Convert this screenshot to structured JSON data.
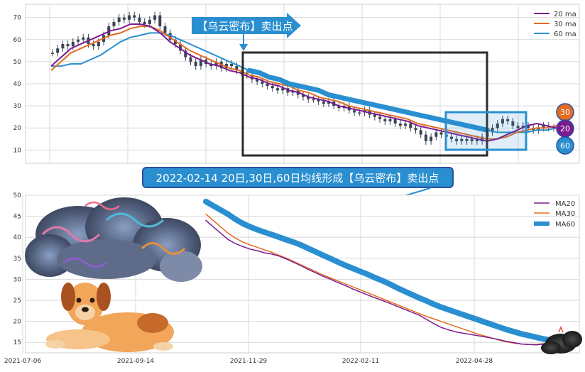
{
  "colors": {
    "ma20": "#7b1b8f",
    "ma30": "#e36c22",
    "ma60": "#2a8fd0",
    "candle": "#3a4454",
    "box_dark": "#2c2c2c",
    "box_blue": "#2a8fd0",
    "callout_bg": "#2a8fd0",
    "callout_text": "#ffffff",
    "grid": "#d9d9d9"
  },
  "callouts": {
    "top": "【乌云密布】卖出点",
    "middle": "2022-02-14 20日,30日,60日均线形成【乌云密布】卖出点"
  },
  "badges": [
    "30",
    "20",
    "60"
  ],
  "decorations": [
    "storm-cloud-illustration",
    "dog-illustration",
    "small-dark-cloud-illustration"
  ],
  "chart_data": [
    {
      "type": "line",
      "panel": "top",
      "ylim": [
        4,
        76
      ],
      "yticks": [
        10,
        20,
        30,
        40,
        50,
        60,
        70
      ],
      "grid": true,
      "legend": {
        "placement": "top-right",
        "entries": [
          "20 ma",
          "30 ma",
          "60 ma"
        ]
      },
      "candles_close": [
        54,
        56,
        58,
        57,
        59,
        60,
        61,
        58,
        57,
        59,
        62,
        66,
        68,
        70,
        69,
        71,
        70,
        68,
        67,
        69,
        71,
        66,
        63,
        60,
        58,
        55,
        52,
        50,
        48,
        51,
        49,
        48,
        50,
        47,
        49,
        48,
        46,
        45,
        44,
        42,
        41,
        40,
        39,
        38,
        37,
        38,
        36,
        37,
        35,
        34,
        33,
        33,
        32,
        31,
        32,
        30,
        29,
        30,
        28,
        27,
        27,
        28,
        26,
        25,
        24,
        23,
        24,
        22,
        21,
        22,
        20,
        19,
        17,
        14,
        16,
        18,
        17,
        16,
        15,
        14,
        15,
        14,
        15,
        14,
        16,
        18,
        20,
        22,
        24,
        23,
        21,
        20,
        21,
        20,
        19,
        20,
        21,
        20,
        20
      ],
      "series": [
        {
          "name": "20 ma",
          "values": [
            48,
            52,
            56,
            58,
            60,
            62,
            64,
            65,
            67,
            67,
            66,
            63,
            59,
            56,
            53,
            51,
            49,
            48,
            46,
            45,
            43,
            42,
            40,
            39,
            37,
            36,
            34,
            33,
            32,
            30,
            29,
            28,
            27,
            26,
            25,
            24,
            23,
            21,
            20,
            19,
            18,
            17,
            16,
            15,
            14,
            15,
            17,
            19,
            21,
            22,
            21,
            20
          ]
        },
        {
          "name": "30 ma",
          "values": [
            46,
            50,
            54,
            56,
            58,
            60,
            62,
            63,
            65,
            66,
            66,
            64,
            61,
            58,
            55,
            53,
            51,
            49,
            47,
            46,
            44,
            43,
            41,
            40,
            39,
            37,
            36,
            34,
            33,
            32,
            30,
            29,
            28,
            27,
            26,
            25,
            24,
            22,
            21,
            20,
            19,
            18,
            17,
            16,
            15,
            15,
            16,
            18,
            19,
            20,
            20,
            21
          ]
        },
        {
          "name": "60 ma",
          "values": [
            48,
            48,
            49,
            49,
            51,
            53,
            56,
            59,
            61,
            62,
            63,
            63,
            62,
            60,
            58,
            56,
            54,
            52,
            50,
            48,
            46,
            45,
            43,
            42,
            40,
            39,
            38,
            37,
            35,
            34,
            33,
            32,
            31,
            30,
            29,
            28,
            27,
            26,
            25,
            24,
            23,
            22,
            21,
            20,
            19,
            18,
            18,
            18,
            18,
            19,
            19,
            20
          ]
        }
      ],
      "box_dark": {
        "y": [
          7,
          55
        ]
      },
      "box_blue": {
        "y": [
          10,
          27
        ]
      },
      "badge_values": [
        30,
        20,
        60
      ]
    },
    {
      "type": "line",
      "panel": "bottom",
      "ylim": [
        12.5,
        50
      ],
      "yticks": [
        15,
        20,
        25,
        30,
        35,
        40,
        45,
        50
      ],
      "xticks": [
        "2021-07-06",
        "2021-09-14",
        "2021-11-29",
        "2022-02-11",
        "2022-04-28"
      ],
      "grid": true,
      "legend": {
        "placement": "top-right",
        "entries": [
          "MA20",
          "MA30",
          "MA60"
        ]
      },
      "series": [
        {
          "name": "MA20",
          "values": [
            44,
            42.5,
            41,
            39.5,
            38.5,
            37.8,
            37.2,
            36.8,
            36.3,
            36,
            35.5,
            34.8,
            34,
            33.2,
            32.3,
            31.5,
            30.7,
            30,
            29.2,
            28.5,
            27.7,
            27,
            26.3,
            25.6,
            25,
            24.3,
            23.6,
            22.9,
            22.2,
            21.5,
            20.5,
            19.5,
            18.6,
            18,
            17.5,
            17.2,
            16.9,
            16.6,
            16.3,
            16,
            15.6,
            15.2,
            14.9,
            14.6,
            14.5,
            14.4,
            14.6,
            15
          ]
        },
        {
          "name": "MA30",
          "values": [
            45.5,
            44,
            42.5,
            41,
            39.8,
            38.9,
            38.2,
            37.6,
            37,
            36.4,
            35.7,
            35,
            34.2,
            33.4,
            32.6,
            31.8,
            31,
            30.3,
            29.6,
            28.9,
            28.2,
            27.5,
            26.8,
            26.1,
            25.4,
            24.7,
            24,
            23.3,
            22.6,
            21.9,
            21.2,
            20.6,
            20,
            19.4,
            18.8,
            18.2,
            17.6,
            17,
            16.5,
            16,
            15.5,
            15.1,
            14.8,
            14.6,
            14.5,
            14.5,
            14.7,
            15.1
          ]
        },
        {
          "name": "MA60",
          "values": [
            48.5,
            47.5,
            46.5,
            45.5,
            44.3,
            43.3,
            42.5,
            41.8,
            41.2,
            40.6,
            40,
            39.4,
            38.8,
            38.1,
            37.3,
            36.5,
            35.7,
            34.9,
            34.1,
            33.3,
            32.6,
            31.9,
            31.2,
            30.4,
            29.7,
            28.9,
            28,
            27.2,
            26.4,
            25.6,
            24.9,
            24.1,
            23.4,
            22.8,
            22.2,
            21.6,
            21,
            20.4,
            19.8,
            19.2,
            18.6,
            18,
            17.5,
            17,
            16.6,
            16.2,
            15.8,
            15.5
          ]
        }
      ]
    }
  ]
}
